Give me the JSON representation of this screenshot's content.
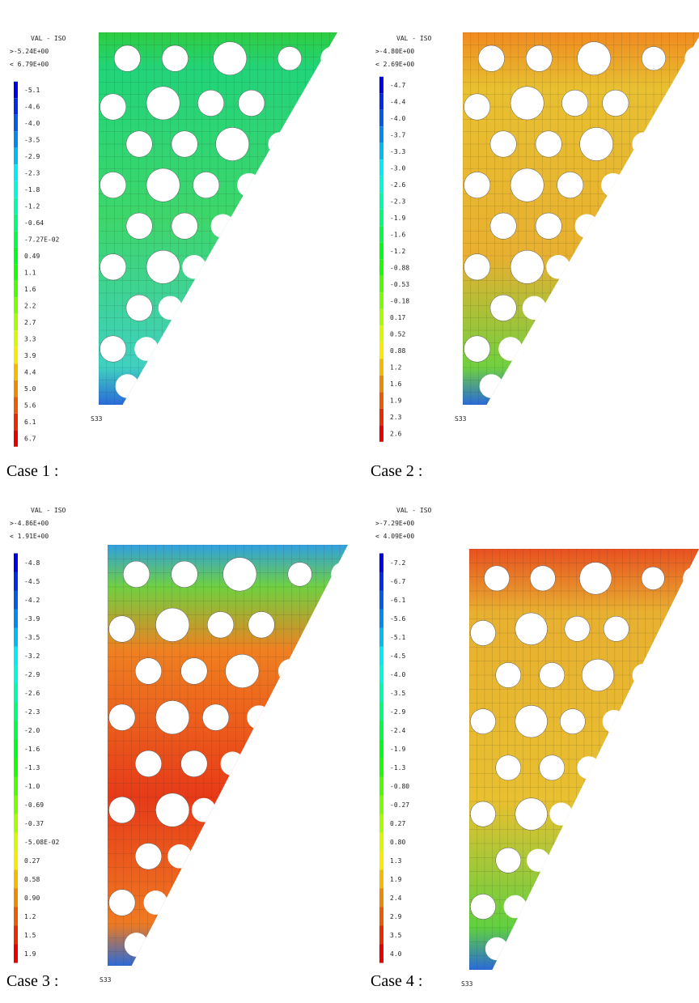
{
  "panels": [
    {
      "caption": "Case 1 :",
      "header": "VAL - ISO",
      "max_line": ">-5.24E+00",
      "min_line": "< 6.79E+00",
      "field": "S33",
      "legend_labels": [
        "-5.1",
        "-4.6",
        "-4.0",
        "-3.5",
        "-2.9",
        "-2.3",
        "-1.8",
        "-1.2",
        "-0.64",
        "-7.27E-02",
        "0.49",
        "1.1",
        "1.6",
        "2.2",
        "2.7",
        "3.3",
        "3.9",
        "4.4",
        "5.0",
        "5.6",
        "6.1",
        "6.7"
      ]
    },
    {
      "caption": "Case 2 :",
      "header": "VAL - ISO",
      "max_line": ">-4.80E+00",
      "min_line": "< 2.69E+00",
      "field": "S33",
      "legend_labels": [
        "-4.7",
        "-4.4",
        "-4.0",
        "-3.7",
        "-3.3",
        "-3.0",
        "-2.6",
        "-2.3",
        "-1.9",
        "-1.6",
        "-1.2",
        "-0.88",
        "-0.53",
        "-0.18",
        "0.17",
        "0.52",
        "0.88",
        "1.2",
        "1.6",
        "1.9",
        "2.3",
        "2.6"
      ]
    },
    {
      "caption": "Case 3 :",
      "header": "VAL - ISO",
      "max_line": ">-4.86E+00",
      "min_line": "< 1.91E+00",
      "field": "S33",
      "legend_labels": [
        "-4.8",
        "-4.5",
        "-4.2",
        "-3.9",
        "-3.5",
        "-3.2",
        "-2.9",
        "-2.6",
        "-2.3",
        "-2.0",
        "-1.6",
        "-1.3",
        "-1.0",
        "-0.69",
        "-0.37",
        "-5.08E-02",
        "0.27",
        "0.58",
        "0.90",
        "1.2",
        "1.5",
        "1.9"
      ]
    },
    {
      "caption": "Case 4 :",
      "header": "VAL - ISO",
      "max_line": ">-7.29E+00",
      "min_line": "< 4.09E+00",
      "field": "S33",
      "legend_labels": [
        "-7.2",
        "-6.7",
        "-6.1",
        "-5.6",
        "-5.1",
        "-4.5",
        "-4.0",
        "-3.5",
        "-2.9",
        "-2.4",
        "-1.9",
        "-1.3",
        "-0.80",
        "-0.27",
        "0.27",
        "0.80",
        "1.3",
        "1.9",
        "2.4",
        "2.9",
        "3.5",
        "4.0"
      ]
    }
  ]
}
